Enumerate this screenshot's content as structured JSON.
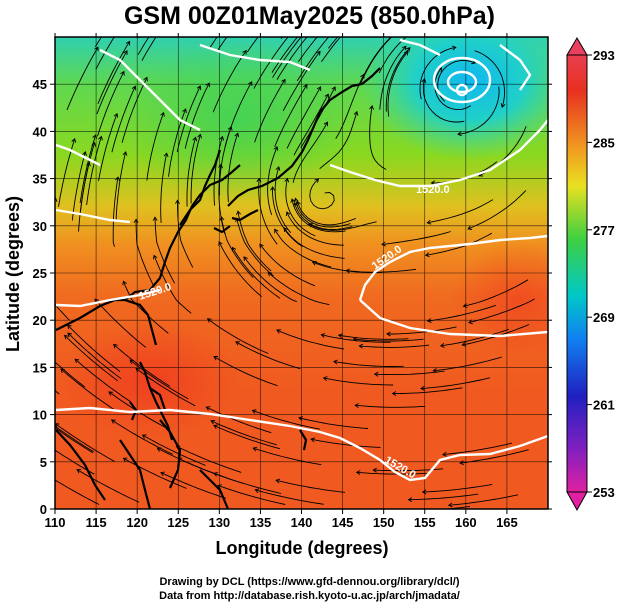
{
  "title": "GSM 00Z01May2025 (850.0hPa)",
  "xlabel": "Longitude (degrees)",
  "ylabel": "Latitude  (degrees)",
  "lon_ticks": [
    "110",
    "115",
    "120",
    "125",
    "130",
    "135",
    "140",
    "145",
    "150",
    "155",
    "160",
    "165"
  ],
  "lat_ticks": [
    "0",
    "5",
    "10",
    "15",
    "20",
    "25",
    "30",
    "35",
    "40",
    "45"
  ],
  "colorbar": {
    "labels": [
      "293",
      "285",
      "277",
      "269",
      "261",
      "253"
    ],
    "stops": [
      "#e0507a",
      "#e53030",
      "#f0a020",
      "#f0e020",
      "#40d040",
      "#00c8c8",
      "#1070f0",
      "#2020a0",
      "#a020c0",
      "#e020a0"
    ]
  },
  "contour_labels": [
    "1520.0",
    "1520.0",
    "1520.0",
    "1520.0"
  ],
  "credits": {
    "line1": "Drawing by DCL (https://www.gfd-dennou.org/library/dcl/)",
    "line2": "Data from http://database.rish.kyoto-u.ac.jp/arch/jmadata/"
  },
  "icons": {
    "low_center": "circle-marker-icon"
  }
}
